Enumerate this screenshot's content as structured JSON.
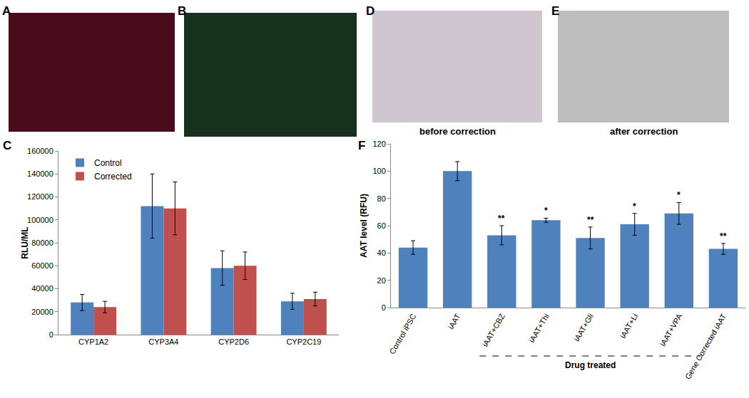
{
  "images": [
    {
      "label": "A"
    },
    {
      "label": "B"
    },
    {
      "label": "D",
      "caption": "before correction"
    },
    {
      "label": "E",
      "caption": "after correction"
    }
  ],
  "chart_data": [
    {
      "type": "bar",
      "title": "C",
      "categories": [
        "CYP1A2",
        "CYP3A4",
        "CYP2D6",
        "CYP2C19"
      ],
      "series": [
        {
          "name": "Control",
          "color": "#4f81bd",
          "values": [
            28000,
            112000,
            58000,
            29000
          ],
          "errors": [
            7000,
            28000,
            15000,
            7000
          ]
        },
        {
          "name": "Corrected",
          "color": "#c0504d",
          "values": [
            24000,
            110000,
            60000,
            31000
          ],
          "errors": [
            5000,
            23000,
            12000,
            6000
          ]
        }
      ],
      "y_label": "RLU/ML",
      "ylim": [
        0,
        160000
      ],
      "yticks": [
        0,
        20000,
        40000,
        60000,
        80000,
        100000,
        120000,
        140000,
        160000
      ],
      "grid": false,
      "legend": "upper left"
    },
    {
      "type": "bar",
      "title": "F",
      "categories": [
        "Control iPSC",
        "iAAT",
        "iAAT+CBZ",
        "iAAT+Thi",
        "iAAT+Gli",
        "iAAT+Li",
        "iAAT+VPA",
        "Gene Corrected iAAT"
      ],
      "values": [
        44,
        100,
        53,
        64,
        51,
        61,
        69,
        43
      ],
      "errors": [
        5,
        7,
        7,
        1.5,
        8,
        8,
        8,
        4
      ],
      "color": "#4f81bd",
      "y_label": "AAT level (RFU)",
      "ylim": [
        0,
        120
      ],
      "yticks": [
        0,
        20,
        40,
        60,
        80,
        100,
        120
      ],
      "grid": false,
      "annotations": [
        {
          "text": "**",
          "category": "iAAT+CBZ"
        },
        {
          "text": "*",
          "category": "iAAT+Thi"
        },
        {
          "text": "**",
          "category": "iAAT+Gli"
        },
        {
          "text": "*",
          "category": "iAAT+Li"
        },
        {
          "text": "*",
          "category": "iAAT+VPA"
        },
        {
          "text": "**",
          "category": "Gene Corrected iAAT"
        },
        {
          "text": "Drug treated",
          "span": [
            "iAAT+CBZ",
            "iAAT+VPA"
          ]
        }
      ]
    }
  ]
}
